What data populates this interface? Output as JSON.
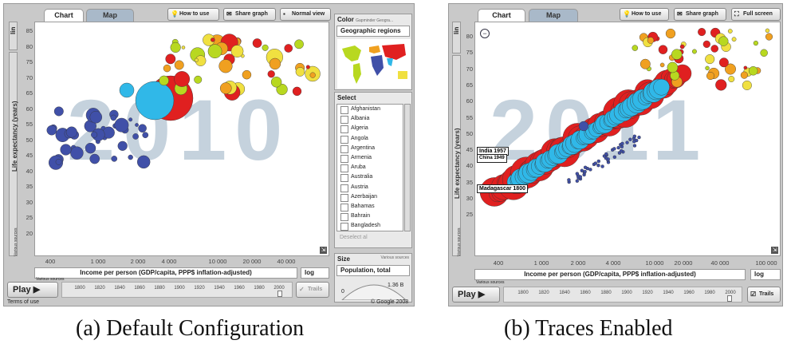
{
  "panel_a": {
    "tabs": {
      "chart": "Chart",
      "map": "Map"
    },
    "buttons": {
      "how_to_use": "How to use",
      "share_graph": "Share graph",
      "normal_view": "Normal view"
    },
    "scale_toggle": "lin",
    "year_watermark": "2010",
    "y_axis_label": "Life expectancy (years)",
    "y_ticks": [
      "85",
      "80",
      "75",
      "70",
      "65",
      "60",
      "55",
      "50",
      "45",
      "40",
      "35",
      "30",
      "25",
      "20"
    ],
    "x_ticks": [
      "400",
      "1 000",
      "2 000",
      "4 000",
      "10 000",
      "20 000",
      "40 000"
    ],
    "x_axis_label": "Income per person (GDP/capita, PPP$ inflation-adjusted)",
    "x_scale": "log",
    "various_sources_y": "Various sources",
    "various_sources_x": "Various sources",
    "color_label": "Color",
    "color_source": "Gapminder Geogra...",
    "color_select": "Geographic regions",
    "select_label": "Select",
    "countries": [
      "Afghanistan",
      "Albania",
      "Algeria",
      "Angola",
      "Argentina",
      "Armenia",
      "Aruba",
      "Australia",
      "Austria",
      "Azerbaijan",
      "Bahamas",
      "Bahrain",
      "Bangladesh"
    ],
    "deselect": "Deselect al",
    "size_label": "Size",
    "size_source": "Various sources",
    "size_select": "Population, total",
    "size_min": "0",
    "size_max": "1.36 B",
    "play": "Play",
    "timeline_years": [
      "1800",
      "1820",
      "1840",
      "1860",
      "1880",
      "1900",
      "1920",
      "1940",
      "1960",
      "1980",
      "2000"
    ],
    "trails": "Trails",
    "terms": "Terms of use",
    "copyright": "© Google 2008"
  },
  "panel_b": {
    "tabs": {
      "chart": "Chart",
      "map": "Map"
    },
    "buttons": {
      "how_to_use": "How to use",
      "share_graph": "Share graph",
      "full_screen": "Full screen"
    },
    "scale_toggle": "lin",
    "year_watermark": "2011",
    "y_axis_label": "Life expectancy (years)",
    "y_ticks": [
      "80",
      "75",
      "70",
      "65",
      "60",
      "55",
      "50",
      "45",
      "40",
      "35",
      "30",
      "25"
    ],
    "x_ticks": [
      "400",
      "1 000",
      "2 000",
      "4 000",
      "10 000",
      "20 000",
      "40 000",
      "100 000"
    ],
    "x_axis_label": "Income per person (GDP/capita, PPP$ inflation-adjusted)",
    "x_scale": "log",
    "various_sources_y": "Various sources",
    "various_sources_x": "Various sources",
    "trail_labels": [
      "India 1957",
      "China 1949",
      "Madagascar 1800"
    ],
    "play": "Play",
    "timeline_years": [
      "1800",
      "1820",
      "1840",
      "1860",
      "1880",
      "1900",
      "1920",
      "1940",
      "1960",
      "1980",
      "2000"
    ],
    "trails": "Trails"
  },
  "captions": {
    "a": "(a) Default Configuration",
    "b": "(b) Traces Enabled"
  },
  "colors": {
    "panel_bg": "#c9c9c9",
    "tab_map_bg": "#a9b9c9",
    "watermark": "#c5d2dd",
    "africa": "#4050a8",
    "asia": "#e02020",
    "europe": "#f0a020",
    "americas": "#b8d820",
    "south_asia": "#30b8e8",
    "pacific": "#f0e040"
  }
}
